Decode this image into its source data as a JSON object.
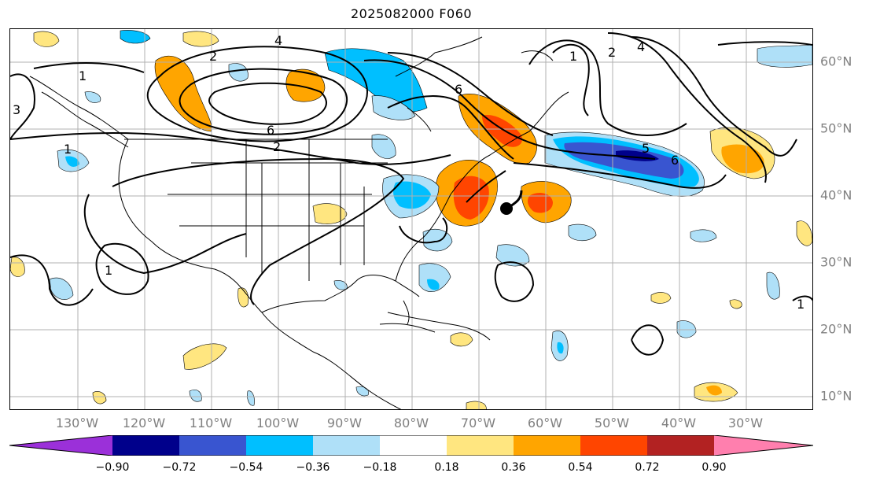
{
  "title": "2025082000 F060",
  "lon_labels": [
    "130°W",
    "120°W",
    "110°W",
    "100°W",
    "90°W",
    "80°W",
    "70°W",
    "60°W",
    "50°W",
    "40°W",
    "30°W"
  ],
  "lat_labels": [
    "60°N",
    "50°N",
    "40°N",
    "30°N",
    "20°N",
    "10°N"
  ],
  "colorbar": {
    "ticks": [
      "−0.90",
      "−0.72",
      "−0.54",
      "−0.36",
      "−0.18",
      "0.18",
      "0.36",
      "0.54",
      "0.72",
      "0.90"
    ],
    "colors": [
      "#9b30d9",
      "#00008b",
      "#3955d0",
      "#00bfff",
      "#afe0f8",
      "#ffffff",
      "#ffe680",
      "#ffa500",
      "#ff4500",
      "#b22222",
      "#ff7fae"
    ]
  },
  "contour_labels": [
    "4",
    "2",
    "1",
    "6",
    "2",
    "1",
    "3",
    "1",
    "6",
    "4",
    "2",
    "1",
    "5",
    "6",
    "1"
  ]
}
